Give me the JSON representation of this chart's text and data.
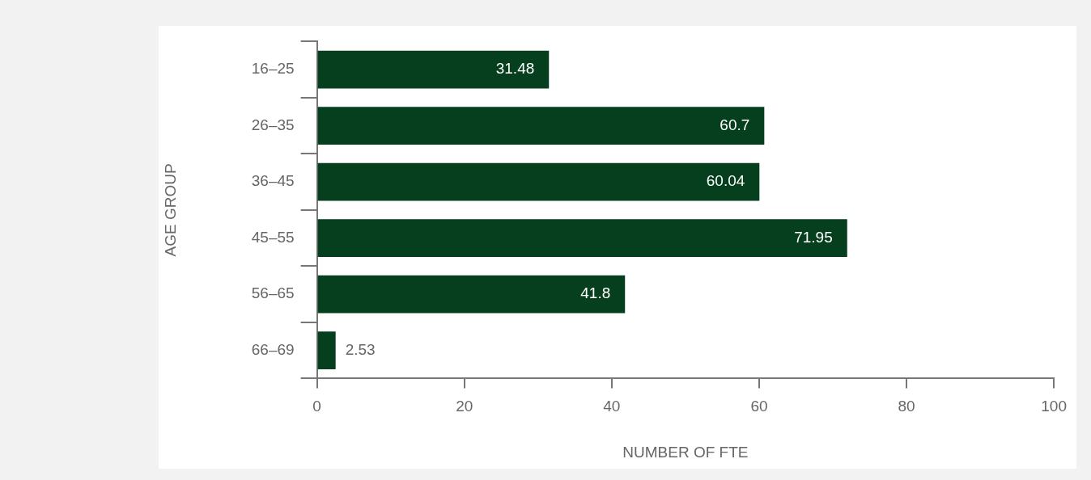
{
  "chart_data": {
    "type": "bar",
    "orientation": "horizontal",
    "xlabel": "NUMBER OF FTE",
    "ylabel": "AGE GROUP",
    "categories": [
      "16–25",
      "26–35",
      "36–45",
      "45–55",
      "56–65",
      "66–69"
    ],
    "values": [
      31.48,
      60.7,
      60.04,
      71.95,
      41.8,
      2.53
    ],
    "color": "#053f1d",
    "xlim": [
      0,
      100
    ],
    "xticks": [
      0,
      20,
      40,
      60,
      80,
      100
    ],
    "grid": false,
    "legend": false,
    "data_labels": true
  }
}
